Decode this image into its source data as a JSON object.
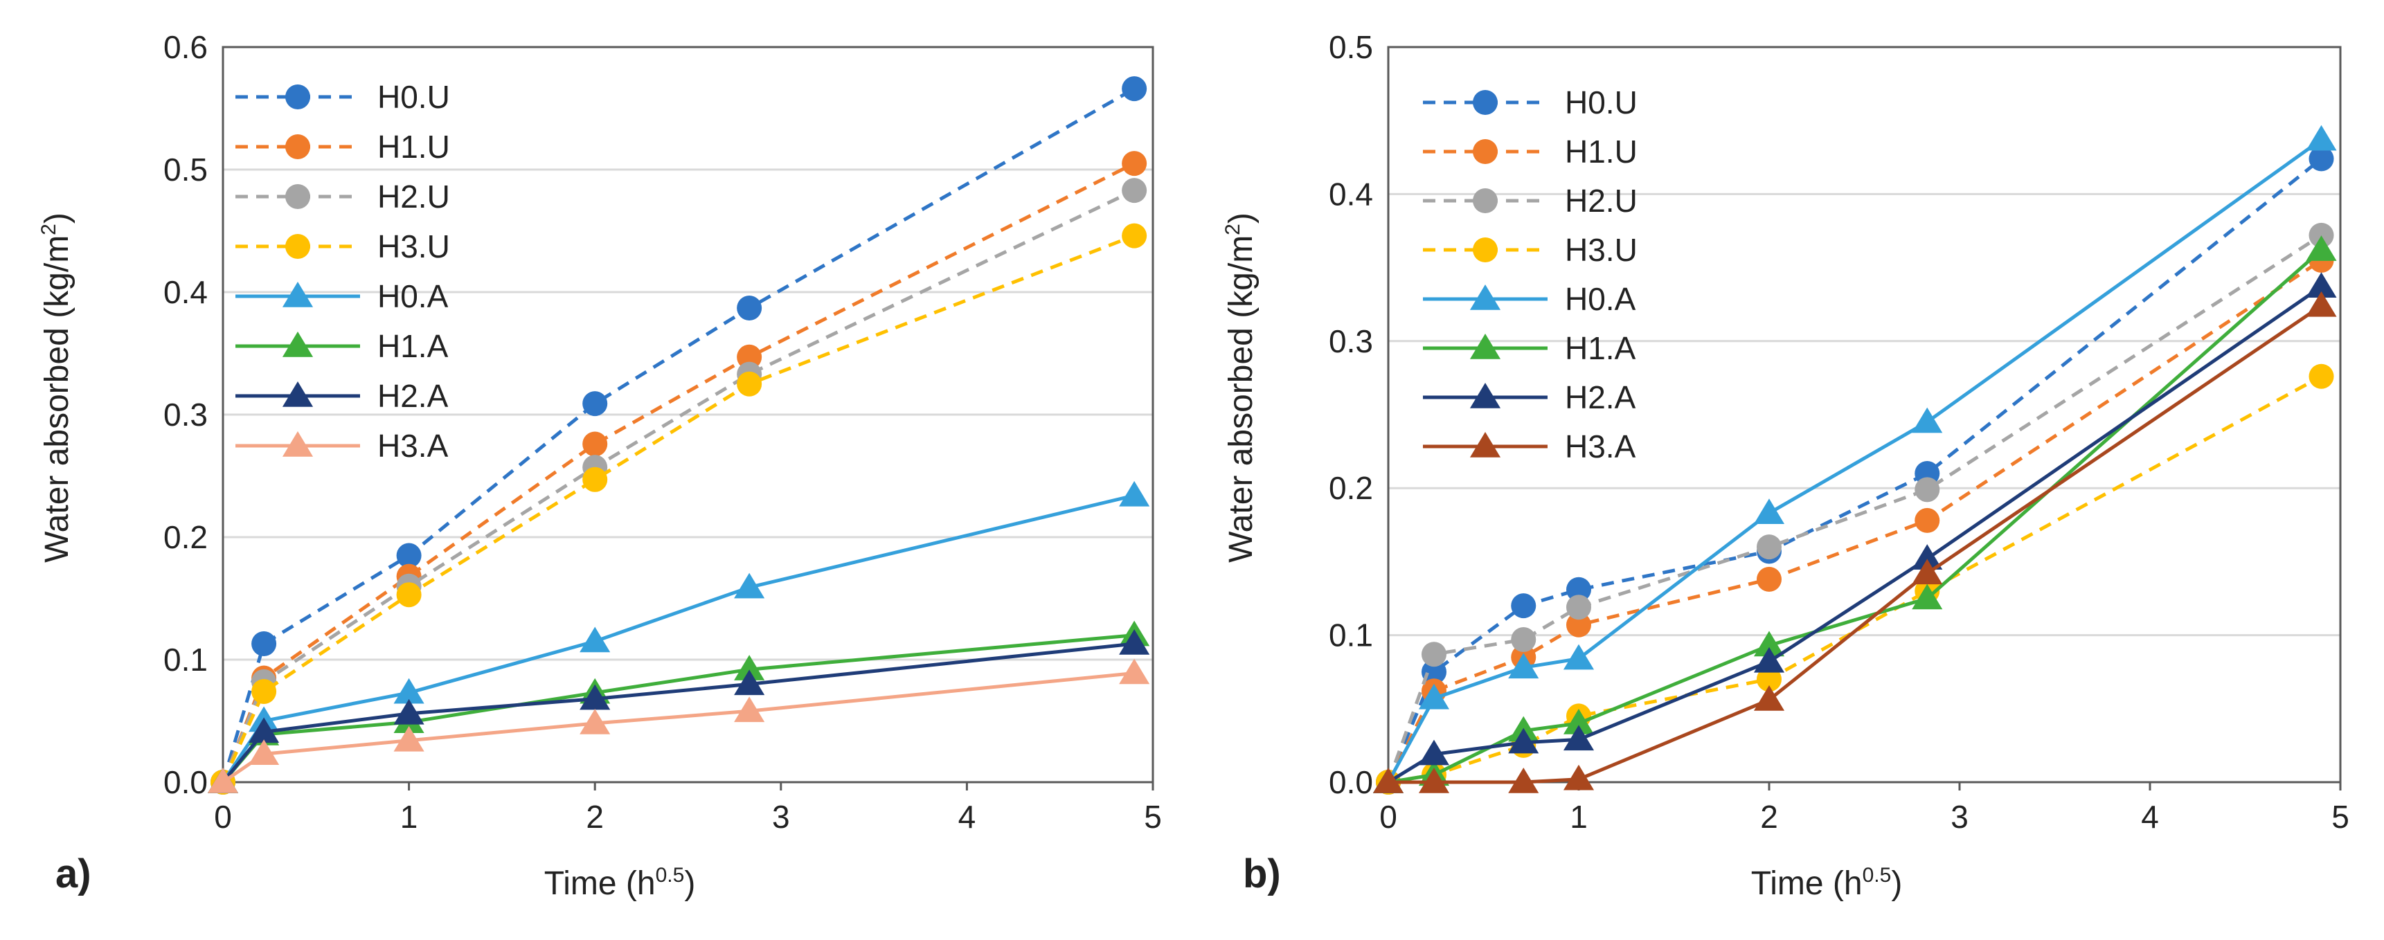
{
  "chart_data": [
    {
      "type": "line",
      "panel_label": "a)",
      "xlabel": "Time (h",
      "xlabel_sup": "0.5",
      "xlabel_close": ")",
      "ylabel": "Water absorbed (kg/m",
      "ylabel_sup": "2",
      "ylabel_close": ")",
      "xlim": [
        0,
        5
      ],
      "ylim": [
        0,
        0.6
      ],
      "xticks": [
        "0",
        "1",
        "2",
        "3",
        "4",
        "5"
      ],
      "yticks": [
        "0.0",
        "0.1",
        "0.2",
        "0.3",
        "0.4",
        "0.5",
        "0.6"
      ],
      "grid": "horizontal",
      "legend_position": "top-left",
      "series": [
        {
          "name": "H0.U",
          "color": "#2E75C6",
          "dash": true,
          "marker": "circle",
          "x": [
            0,
            0.22,
            1,
            2,
            2.83,
            4.9
          ],
          "y": [
            0,
            0.113,
            0.185,
            0.309,
            0.387,
            0.566
          ]
        },
        {
          "name": "H1.U",
          "color": "#F07B2A",
          "dash": true,
          "marker": "circle",
          "x": [
            0,
            0.22,
            1,
            2,
            2.83,
            4.9
          ],
          "y": [
            0,
            0.085,
            0.168,
            0.276,
            0.347,
            0.505
          ]
        },
        {
          "name": "H2.U",
          "color": "#A5A5A5",
          "dash": true,
          "marker": "circle",
          "x": [
            0,
            0.22,
            1,
            2,
            2.83,
            4.9
          ],
          "y": [
            0,
            0.082,
            0.16,
            0.257,
            0.333,
            0.483
          ]
        },
        {
          "name": "H3.U",
          "color": "#FFC000",
          "dash": true,
          "marker": "circle",
          "x": [
            0,
            0.22,
            1,
            2,
            2.83,
            4.9
          ],
          "y": [
            0,
            0.074,
            0.153,
            0.247,
            0.325,
            0.446
          ]
        },
        {
          "name": "H0.A",
          "color": "#35A0DB",
          "dash": false,
          "marker": "triangle",
          "x": [
            0,
            0.22,
            1,
            2,
            2.83,
            4.9
          ],
          "y": [
            0,
            0.05,
            0.073,
            0.115,
            0.159,
            0.234
          ]
        },
        {
          "name": "H1.A",
          "color": "#3FAE3B",
          "dash": false,
          "marker": "triangle",
          "x": [
            0,
            0.22,
            1,
            2,
            2.83,
            4.9
          ],
          "y": [
            0,
            0.039,
            0.049,
            0.073,
            0.092,
            0.12
          ]
        },
        {
          "name": "H2.A",
          "color": "#1F3C78",
          "dash": false,
          "marker": "triangle",
          "x": [
            0,
            0.22,
            1,
            2,
            2.83,
            4.9
          ],
          "y": [
            0,
            0.041,
            0.056,
            0.068,
            0.08,
            0.113
          ]
        },
        {
          "name": "H3.A",
          "color": "#F4A586",
          "dash": false,
          "marker": "triangle",
          "x": [
            0,
            0.22,
            1,
            2,
            2.83,
            4.9
          ],
          "y": [
            0,
            0.023,
            0.034,
            0.048,
            0.058,
            0.089
          ]
        }
      ]
    },
    {
      "type": "line",
      "panel_label": "b)",
      "xlabel": "Time (h",
      "xlabel_sup": "0.5",
      "xlabel_close": ")",
      "ylabel": "Water absorbed (kg/m",
      "ylabel_sup": "2",
      "ylabel_close": ")",
      "xlim": [
        0,
        5
      ],
      "ylim": [
        0,
        0.5
      ],
      "xticks": [
        "0",
        "1",
        "2",
        "3",
        "4",
        "5"
      ],
      "yticks": [
        "0.0",
        "0.1",
        "0.2",
        "0.3",
        "0.4",
        "0.5"
      ],
      "grid": "horizontal",
      "legend_position": "top-left",
      "series": [
        {
          "name": "H0.U",
          "color": "#2E75C6",
          "dash": true,
          "marker": "circle",
          "x": [
            0,
            0.24,
            0.71,
            1,
            2,
            2.83,
            4.9
          ],
          "y": [
            0,
            0.075,
            0.12,
            0.131,
            0.157,
            0.21,
            0.424
          ]
        },
        {
          "name": "H1.U",
          "color": "#F07B2A",
          "dash": true,
          "marker": "circle",
          "x": [
            0,
            0.24,
            0.71,
            1,
            2,
            2.83,
            4.9
          ],
          "y": [
            0,
            0.062,
            0.085,
            0.107,
            0.138,
            0.178,
            0.355
          ]
        },
        {
          "name": "H2.U",
          "color": "#A5A5A5",
          "dash": true,
          "marker": "circle",
          "x": [
            0,
            0.24,
            0.71,
            1,
            2,
            2.83,
            4.9
          ],
          "y": [
            0,
            0.087,
            0.097,
            0.119,
            0.16,
            0.199,
            0.372
          ]
        },
        {
          "name": "H3.U",
          "color": "#FFC000",
          "dash": true,
          "marker": "circle",
          "x": [
            0,
            0.24,
            0.71,
            1,
            2,
            2.83,
            4.9
          ],
          "y": [
            0,
            0.005,
            0.025,
            0.045,
            0.07,
            0.13,
            0.276
          ]
        },
        {
          "name": "H0.A",
          "color": "#35A0DB",
          "dash": false,
          "marker": "triangle",
          "x": [
            0,
            0.24,
            0.71,
            1,
            2,
            2.83,
            4.9
          ],
          "y": [
            0,
            0.057,
            0.078,
            0.084,
            0.183,
            0.245,
            0.437
          ]
        },
        {
          "name": "H1.A",
          "color": "#3FAE3B",
          "dash": false,
          "marker": "triangle",
          "x": [
            0,
            0.24,
            0.71,
            1,
            2,
            2.83,
            4.9
          ],
          "y": [
            0,
            0.005,
            0.035,
            0.04,
            0.093,
            0.125,
            0.362
          ]
        },
        {
          "name": "H2.A",
          "color": "#1F3C78",
          "dash": false,
          "marker": "triangle",
          "x": [
            0,
            0.24,
            0.71,
            1,
            2,
            2.83,
            4.9
          ],
          "y": [
            0,
            0.019,
            0.027,
            0.029,
            0.082,
            0.152,
            0.337
          ]
        },
        {
          "name": "H3.A",
          "color": "#A9471E",
          "dash": false,
          "marker": "triangle",
          "x": [
            0,
            0.24,
            0.71,
            1,
            2,
            2.83,
            4.9
          ],
          "y": [
            0,
            0.0,
            0.0,
            0.002,
            0.056,
            0.142,
            0.324
          ]
        }
      ]
    }
  ]
}
